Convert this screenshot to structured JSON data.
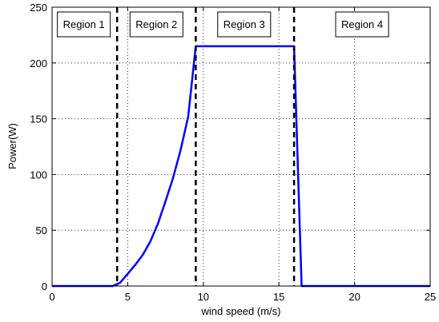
{
  "chart_data": {
    "type": "line",
    "xlabel": "wind speed (m/s)",
    "ylabel": "Power(W)",
    "xlim": [
      0,
      25
    ],
    "ylim": [
      0,
      250
    ],
    "xticks": [
      0,
      5,
      10,
      15,
      20,
      25
    ],
    "yticks": [
      0,
      50,
      100,
      150,
      200,
      250
    ],
    "grid": true,
    "series": [
      {
        "color": "#0000ff",
        "x": [
          0,
          4,
          4.5,
          5,
          5.5,
          6,
          6.5,
          7,
          7.5,
          8,
          8.5,
          9,
          9.5,
          16,
          16.5,
          25
        ],
        "y": [
          0,
          0,
          3,
          11,
          19,
          28,
          40,
          56,
          76,
          97,
          122,
          152,
          215,
          215,
          0,
          0
        ]
      }
    ],
    "vlines": {
      "x": [
        4.3,
        9.5,
        16
      ],
      "style": "dashed",
      "color": "#000000"
    },
    "regions": [
      {
        "label": "Region 1",
        "x": 2.1
      },
      {
        "label": "Region 2",
        "x": 6.9
      },
      {
        "label": "Region 3",
        "x": 12.7
      },
      {
        "label": "Region 4",
        "x": 20.5
      }
    ]
  }
}
